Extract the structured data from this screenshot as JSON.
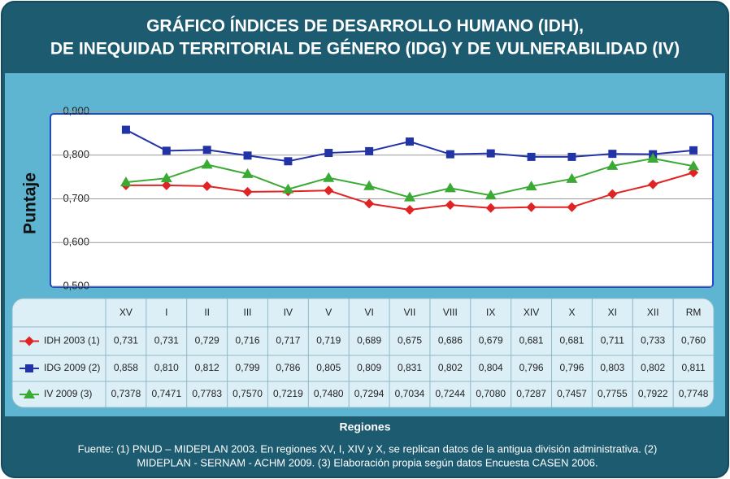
{
  "chart_data": {
    "type": "line",
    "title": [
      "GRÁFICO ÍNDICES DE DESARROLLO HUMANO (IDH),",
      "DE INEQUIDAD TERRITORIAL DE GÉNERO (IDG) Y DE VULNERABILIDAD (IV)"
    ],
    "y_label": "Puntaje",
    "x_label": "Regiones",
    "categories": [
      "XV",
      "I",
      "II",
      "III",
      "IV",
      "V",
      "VI",
      "VII",
      "VIII",
      "IX",
      "XIV",
      "X",
      "XI",
      "XII",
      "RM"
    ],
    "ylim": [
      0.5,
      0.9
    ],
    "yticks": [
      {
        "value": 0.5,
        "label": "0,500"
      },
      {
        "value": 0.6,
        "label": "0,600"
      },
      {
        "value": 0.7,
        "label": "0,700"
      },
      {
        "value": 0.8,
        "label": "0,800"
      },
      {
        "value": 0.9,
        "label": "0,900"
      }
    ],
    "grid": true,
    "series": [
      {
        "name": "IDH 2003 (1)",
        "color": "#e02424",
        "marker": "diamond",
        "values": [
          0.731,
          0.731,
          0.729,
          0.716,
          0.717,
          0.719,
          0.689,
          0.675,
          0.686,
          0.679,
          0.681,
          0.681,
          0.711,
          0.733,
          0.76
        ],
        "value_labels": [
          "0,731",
          "0,731",
          "0,729",
          "0,716",
          "0,717",
          "0,719",
          "0,689",
          "0,675",
          "0,686",
          "0,679",
          "0,681",
          "0,681",
          "0,711",
          "0,733",
          "0,760"
        ]
      },
      {
        "name": "IDG 2009 (2)",
        "color": "#2233a6",
        "marker": "square",
        "values": [
          0.858,
          0.81,
          0.812,
          0.799,
          0.786,
          0.805,
          0.809,
          0.831,
          0.802,
          0.804,
          0.796,
          0.796,
          0.803,
          0.802,
          0.811
        ],
        "value_labels": [
          "0,858",
          "0,810",
          "0,812",
          "0,799",
          "0,786",
          "0,805",
          "0,809",
          "0,831",
          "0,802",
          "0,804",
          "0,796",
          "0,796",
          "0,803",
          "0,802",
          "0,811"
        ]
      },
      {
        "name": "IV 2009 (3)",
        "color": "#3aaa35",
        "marker": "triangle",
        "values": [
          0.7378,
          0.7471,
          0.7783,
          0.757,
          0.7219,
          0.748,
          0.7294,
          0.7034,
          0.7244,
          0.708,
          0.7287,
          0.7457,
          0.7755,
          0.7922,
          0.7748
        ],
        "value_labels": [
          "0,7378",
          "0,7471",
          "0,7783",
          "0,7570",
          "0,7219",
          "0,7480",
          "0,7294",
          "0,7034",
          "0,7244",
          "0,7080",
          "0,7287",
          "0,7457",
          "0,7755",
          "0,7922",
          "0,7748"
        ]
      }
    ],
    "source": [
      "Fuente: (1)  PNUD – MIDEPLAN 2003. En regiones XV, I, XIV y X, se replican datos de la antigua división administrativa. (2)",
      "MIDEPLAN - SERNAM - ACHM 2009. (3) Elaboración propia según datos Encuesta CASEN 2006."
    ]
  }
}
